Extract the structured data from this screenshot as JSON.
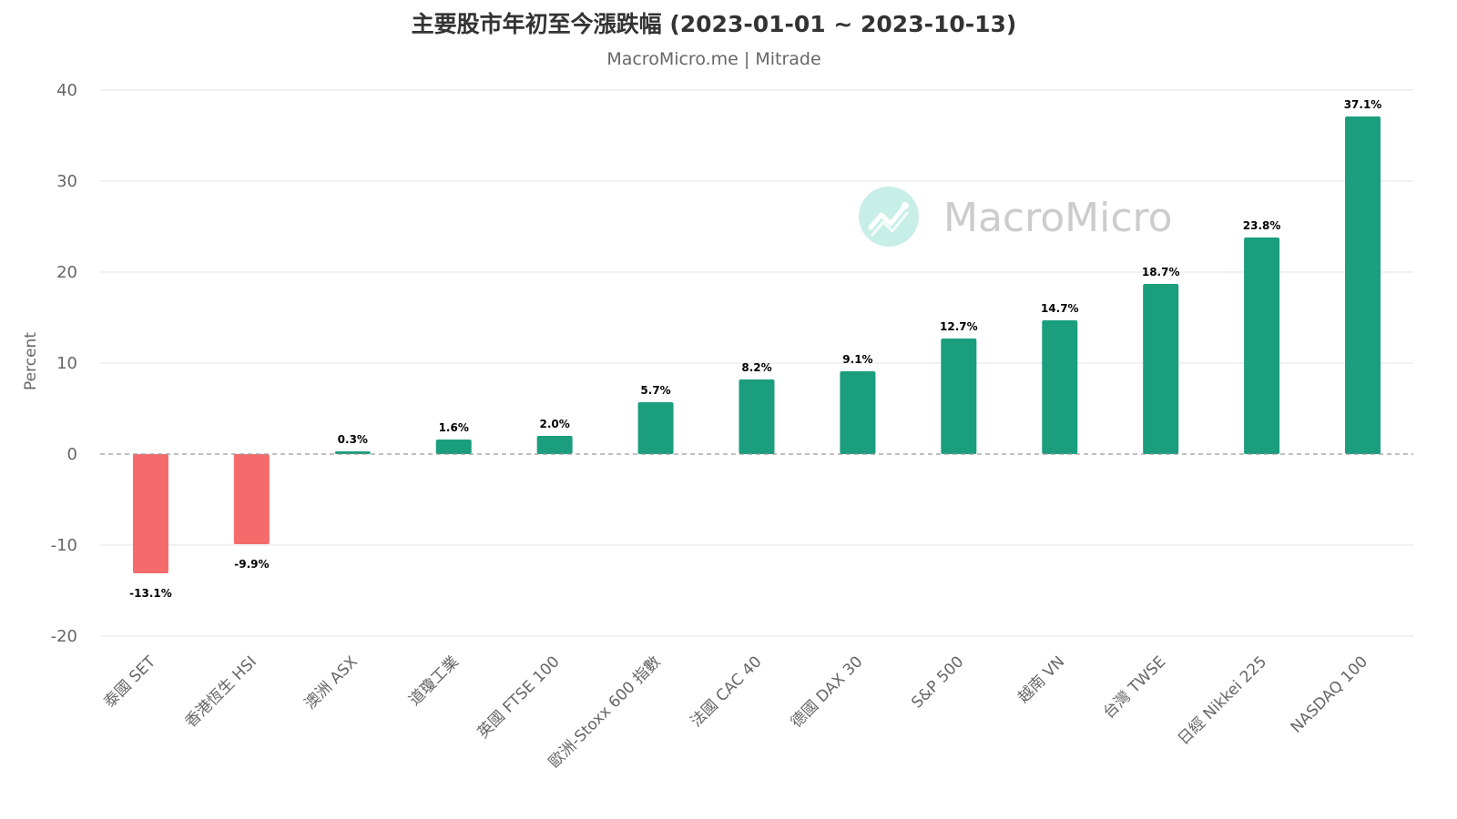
{
  "title": "主要股市年初至今漲跌幅 (2023-01-01 ~ 2023-10-13)",
  "subtitle": "MacroMicro.me | Mitrade",
  "watermark": "MacroMicro",
  "colors": {
    "positive": "#1a9e7e",
    "negative": "#f56b6b",
    "watermark_icon": "#c8efe7"
  },
  "chart_data": {
    "type": "bar",
    "categories": [
      "泰國 SET",
      "香港恆生 HSI",
      "澳洲 ASX",
      "道瓊工業",
      "英國 FTSE 100",
      "歐洲-Stoxx 600 指數",
      "法國 CAC 40",
      "德國 DAX 30",
      "S&P 500",
      "越南 VN",
      "台灣 TWSE",
      "日經 Nikkei 225",
      "NASDAQ 100"
    ],
    "values": [
      -13.1,
      -9.9,
      0.3,
      1.6,
      2.0,
      5.7,
      8.2,
      9.1,
      12.7,
      14.7,
      18.7,
      23.8,
      37.1
    ],
    "data_labels": [
      "-13.1%",
      "-9.9%",
      "0.3%",
      "1.6%",
      "2.0%",
      "5.7%",
      "8.2%",
      "9.1%",
      "12.7%",
      "14.7%",
      "18.7%",
      "23.8%",
      "37.1%"
    ],
    "ylabel": "Percent",
    "ylim": [
      -20,
      40
    ],
    "yticks": [
      -20,
      -10,
      0,
      10,
      20,
      30,
      40
    ],
    "grid": true,
    "legend": "none"
  }
}
